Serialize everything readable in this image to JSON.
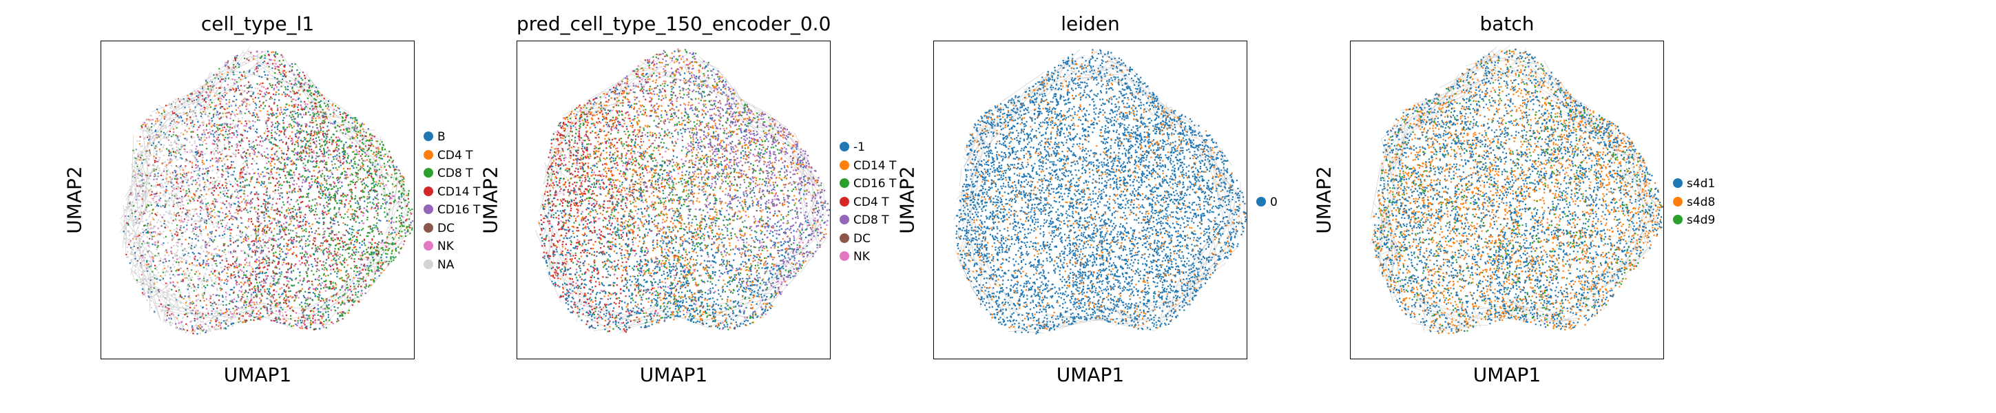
{
  "chart_data": [
    {
      "type": "scatter",
      "title": "cell_type_l1",
      "xlabel": "UMAP1",
      "ylabel": "UMAP2",
      "legend_placement": "right",
      "grid": false,
      "categories": [
        {
          "name": "B",
          "color": "#1f77b4"
        },
        {
          "name": "CD4 T",
          "color": "#ff7f0e"
        },
        {
          "name": "CD8 T",
          "color": "#2ca02c"
        },
        {
          "name": "CD14 T",
          "color": "#d62728"
        },
        {
          "name": "CD16 T",
          "color": "#9467bd"
        },
        {
          "name": "DC",
          "color": "#8c564b"
        },
        {
          "name": "NK",
          "color": "#e377c2"
        },
        {
          "name": "NA",
          "color": "#d3d3d3"
        }
      ]
    },
    {
      "type": "scatter",
      "title": "pred_cell_type_150_encoder_0.0",
      "xlabel": "UMAP1",
      "ylabel": "UMAP2",
      "legend_placement": "right",
      "grid": false,
      "categories": [
        {
          "name": "-1",
          "color": "#1f77b4"
        },
        {
          "name": "CD14 T",
          "color": "#ff7f0e"
        },
        {
          "name": "CD16 T",
          "color": "#2ca02c"
        },
        {
          "name": "CD4 T",
          "color": "#d62728"
        },
        {
          "name": "CD8 T",
          "color": "#9467bd"
        },
        {
          "name": "DC",
          "color": "#8c564b"
        },
        {
          "name": "NK",
          "color": "#e377c2"
        }
      ]
    },
    {
      "type": "scatter",
      "title": "leiden",
      "xlabel": "UMAP1",
      "ylabel": "UMAP2",
      "legend_placement": "right",
      "grid": false,
      "categories": [
        {
          "name": "0",
          "color": "#1f77b4"
        }
      ]
    },
    {
      "type": "scatter",
      "title": "batch",
      "xlabel": "UMAP1",
      "ylabel": "UMAP2",
      "legend_placement": "right",
      "grid": false,
      "categories": [
        {
          "name": "s4d1",
          "color": "#1f77b4"
        },
        {
          "name": "s4d8",
          "color": "#ff7f0e"
        },
        {
          "name": "s4d9",
          "color": "#2ca02c"
        }
      ]
    }
  ]
}
